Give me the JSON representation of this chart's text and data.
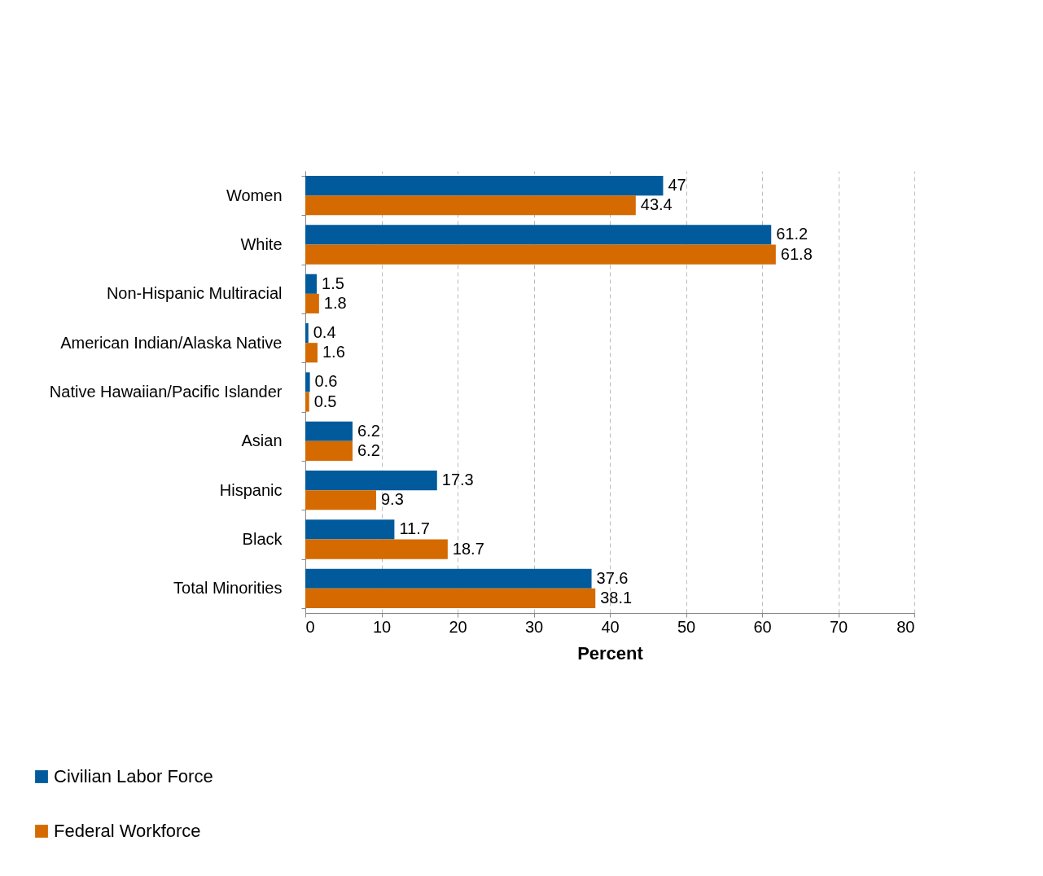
{
  "chart_data": {
    "type": "bar",
    "orientation": "horizontal",
    "categories": [
      "Women",
      "White",
      "Non-Hispanic Multiracial",
      "American Indian/Alaska Native",
      "Native Hawaiian/Pacific Islander",
      "Asian",
      "Hispanic",
      "Black",
      "Total Minorities"
    ],
    "series": [
      {
        "name": "Civilian Labor Force",
        "color": "#005a9c",
        "values": [
          47,
          61.2,
          1.5,
          0.4,
          0.6,
          6.2,
          17.3,
          11.7,
          37.6
        ]
      },
      {
        "name": "Federal Workforce",
        "color": "#d46a00",
        "values": [
          43.4,
          61.8,
          1.8,
          1.6,
          0.5,
          6.2,
          9.3,
          18.7,
          38.1
        ]
      }
    ],
    "xlabel": "Percent",
    "xlim": [
      0,
      80
    ],
    "xticks": [
      0,
      10,
      20,
      30,
      40,
      50,
      60,
      70,
      80
    ],
    "grid": "x",
    "legend": "bottom left",
    "data_labels": true
  }
}
